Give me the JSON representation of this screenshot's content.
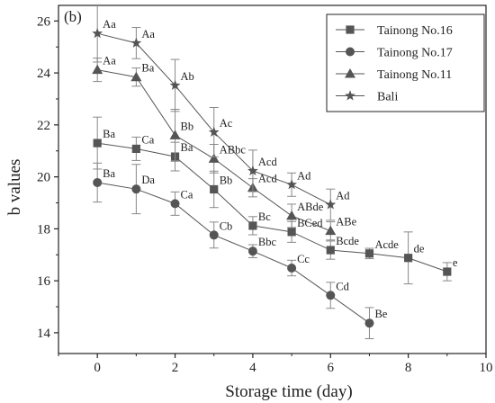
{
  "chart_data": {
    "type": "line",
    "panel_label": "(b)",
    "xlabel": "Storage time (day)",
    "ylabel": "b values",
    "xlim": [
      -1,
      10
    ],
    "ylim": [
      13.2,
      26.6
    ],
    "xticks": [
      0,
      2,
      4,
      6,
      8,
      10
    ],
    "yticks": [
      14,
      16,
      18,
      20,
      22,
      24,
      26
    ],
    "grid": false,
    "legend_position": "top-right",
    "series": [
      {
        "name": "Tainong No.16",
        "marker": "square",
        "color": "#555555",
        "x": [
          0,
          1,
          2,
          3,
          4,
          5,
          6,
          7,
          8,
          9
        ],
        "y": [
          21.3,
          21.08,
          20.78,
          19.52,
          18.12,
          17.88,
          17.18,
          17.05,
          16.88,
          16.35
        ],
        "err": [
          1.0,
          0.45,
          0.55,
          0.7,
          0.35,
          0.4,
          0.35,
          0.2,
          1.0,
          0.35
        ],
        "labels": [
          "Ba",
          "Ca",
          "Ba",
          "Bb",
          "Bc",
          "BCed",
          "Bcde",
          "Acde",
          "de",
          "e"
        ]
      },
      {
        "name": "Tainong No.17",
        "marker": "circle",
        "color": "#555555",
        "x": [
          0,
          1,
          2,
          3,
          4,
          5,
          6,
          7
        ],
        "y": [
          19.78,
          19.53,
          18.97,
          17.76,
          17.14,
          16.49,
          15.44,
          14.37
        ],
        "err": [
          0.75,
          0.95,
          0.45,
          0.5,
          0.25,
          0.3,
          0.5,
          0.6
        ],
        "labels": [
          "Ba",
          "Da",
          "Ca",
          "Cb",
          "Bbc",
          "Cc",
          "Cd",
          "Be"
        ]
      },
      {
        "name": "Tainong No.11",
        "marker": "triangle",
        "color": "#555555",
        "x": [
          0,
          1,
          2,
          3,
          4,
          5,
          6
        ],
        "y": [
          24.12,
          23.84,
          21.6,
          20.7,
          19.58,
          18.5,
          17.92
        ],
        "err": [
          0.45,
          0.35,
          1.0,
          0.55,
          0.35,
          0.45,
          0.35
        ],
        "labels": [
          "Aa",
          "Ba",
          "Bb",
          "ABbc",
          "Acd",
          "ABde",
          "ABe"
        ]
      },
      {
        "name": "Bali",
        "marker": "star",
        "color": "#555555",
        "x": [
          0,
          1,
          2,
          3,
          4,
          5,
          6
        ],
        "y": [
          25.52,
          25.15,
          23.52,
          21.72,
          20.23,
          19.7,
          18.93
        ],
        "err": [
          1.1,
          0.6,
          1.0,
          0.95,
          0.8,
          0.45,
          0.6
        ],
        "labels": [
          "Aa",
          "Aa",
          "Ab",
          "Ac",
          "Acd",
          "Ad",
          "Ad"
        ]
      }
    ]
  }
}
